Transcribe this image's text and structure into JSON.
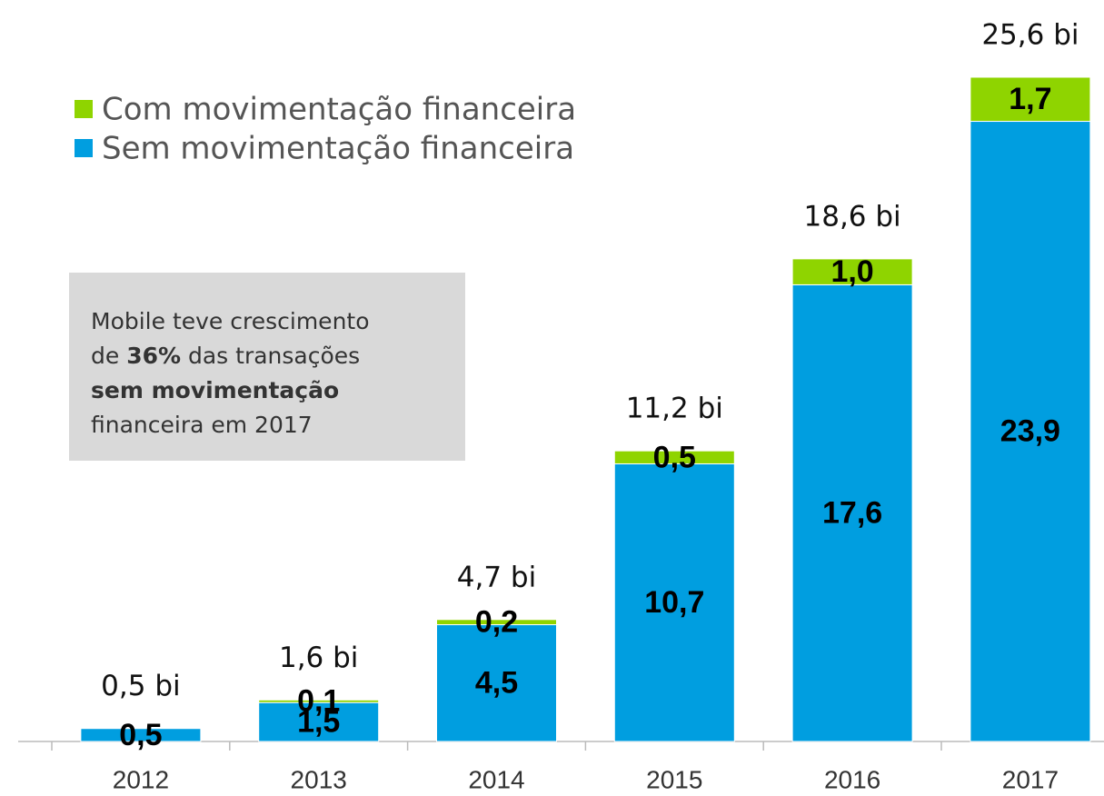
{
  "chart_data": {
    "type": "stacked_bar",
    "categories": [
      "2012",
      "2013",
      "2014",
      "2015",
      "2016",
      "2017"
    ],
    "series": [
      {
        "name": "Sem movimentação financeira",
        "color": "#009ee0",
        "values": [
          0.5,
          1.5,
          4.5,
          10.7,
          17.6,
          23.9
        ],
        "value_labels": [
          "0,5",
          "1,5",
          "4,5",
          "10,7",
          "17,6",
          "23,9"
        ]
      },
      {
        "name": "Com movimentação financeira",
        "color": "#8fd400",
        "values": [
          null,
          0.1,
          0.2,
          0.5,
          1.0,
          1.7
        ],
        "value_labels": [
          null,
          "0,1",
          "0,2",
          "0,5",
          "1,0",
          "1,7"
        ]
      }
    ],
    "totals": {
      "values": [
        0.5,
        1.6,
        4.7,
        11.2,
        18.6,
        25.6
      ],
      "value_labels": [
        "0,5 bi",
        "1,6 bi",
        "4,7 bi",
        "11,2 bi",
        "18,6 bi",
        "25,6 bi"
      ]
    },
    "ylim": [
      0,
      27
    ],
    "annotation": {
      "lines": [
        [
          {
            "text": "Mobile teve crescimento"
          }
        ],
        [
          {
            "text": "de "
          },
          {
            "text": "36%",
            "bold": true
          },
          {
            "text": " das transações"
          }
        ],
        [
          {
            "text": "sem movimentação",
            "bold": true
          }
        ],
        [
          {
            "text": "financeira em 2017"
          }
        ]
      ]
    }
  }
}
